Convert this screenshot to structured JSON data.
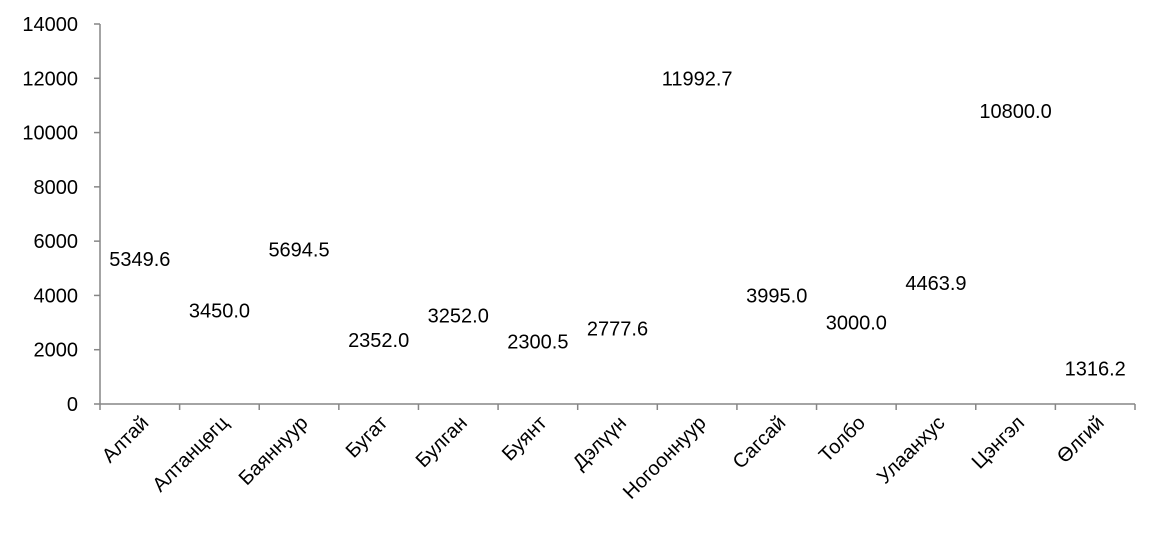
{
  "chart_data": {
    "type": "bar",
    "title": "",
    "xlabel": "",
    "ylabel": "",
    "categories": [
      "Алтай",
      "Алтанцөгц",
      "Баяннуур",
      "Бугат",
      "Булган",
      "Буянт",
      "Дэлүүн",
      "Ногооннуур",
      "Сагсай",
      "Толбо",
      "Улаанхус",
      "Цэнгэл",
      "Өлгий"
    ],
    "values": [
      5349.6,
      3450.0,
      5694.5,
      2352.0,
      3252.0,
      2300.5,
      2777.6,
      11992.7,
      3995.0,
      3000.0,
      4463.9,
      10800.0,
      1316.2
    ],
    "data_labels": [
      "5349.6",
      "3450.0",
      "5694.5",
      "2352.0",
      "3252.0",
      "2300.5",
      "2777.6",
      "11992.7",
      "3995.0",
      "3000.0",
      "4463.9",
      "10800.0",
      "1316.2"
    ],
    "ylim": [
      0,
      14000
    ],
    "yticks": [
      "0",
      "2000",
      "4000",
      "6000",
      "8000",
      "10000",
      "12000",
      "14000"
    ],
    "grid": false,
    "legend": "none",
    "bars_visible": false,
    "colors": {
      "axis": "#868686",
      "text": "#000000"
    }
  }
}
